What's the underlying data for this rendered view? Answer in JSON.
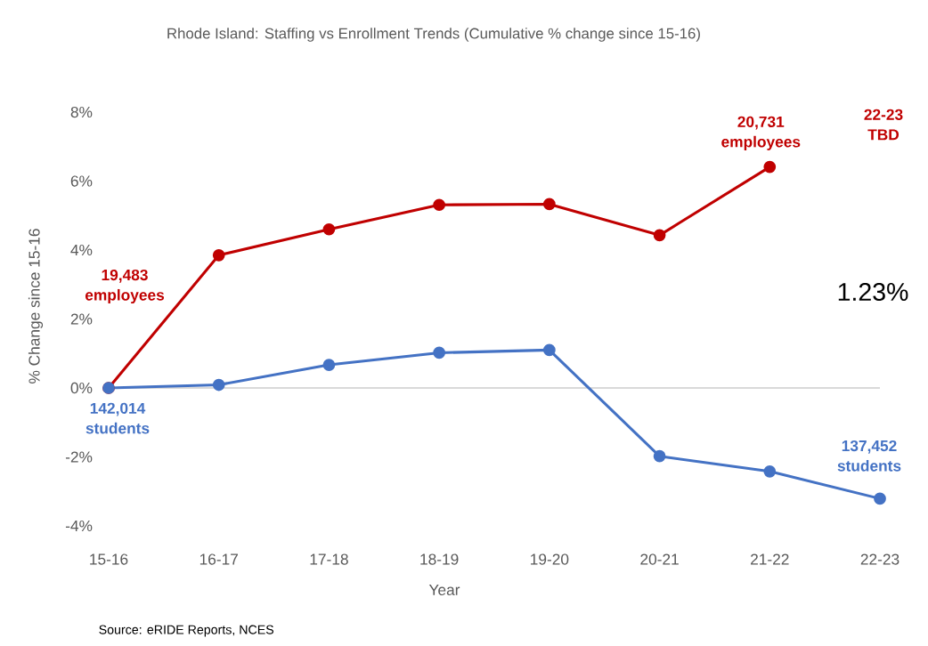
{
  "chart_data": {
    "type": "line",
    "title": "Rhode Island: Staffing vs Enrollment Trends (Cumulative % change since 15-16)",
    "xlabel": "Year",
    "ylabel": "% Change since 15-16",
    "categories": [
      "15-16",
      "16-17",
      "17-18",
      "18-19",
      "19-20",
      "20-21",
      "21-22",
      "22-23"
    ],
    "series": [
      {
        "color": "#c00000",
        "values": [
          0,
          3.85,
          4.6,
          5.31,
          5.33,
          4.43,
          6.41,
          null
        ]
      },
      {
        "color": "#4472c4",
        "values": [
          0,
          0.09,
          0.67,
          1.02,
          1.1,
          -1.98,
          -2.42,
          -3.21
        ]
      }
    ],
    "ylim": [
      -4,
      8
    ],
    "yticks": [
      {
        "value": -4,
        "label": "-4%"
      },
      {
        "value": -2,
        "label": "-2%"
      },
      {
        "value": 0,
        "label": "0%"
      },
      {
        "value": 2,
        "label": "2%"
      },
      {
        "value": 4,
        "label": "4%"
      },
      {
        "value": 6,
        "label": "6%"
      },
      {
        "value": 8,
        "label": "8%"
      }
    ],
    "ref_lines": [
      {
        "axis": "y",
        "value": 0,
        "color": "#d9d9d9"
      }
    ],
    "marker": "circle",
    "line_style": "solid",
    "annotations": [
      "19,483 employees",
      {
        "text": "142,014 students",
        "x": "15-16",
        "y": 0
      },
      {
        "text": "20,731 employees",
        "x": "21-22",
        "y": 6.41
      },
      {
        "text": "137,452 students",
        "x": "22-23",
        "y": -3.21
      },
      "22-23 TBD",
      "1.23%",
      "Source: eRIDE Reports, NCES"
    ]
  }
}
